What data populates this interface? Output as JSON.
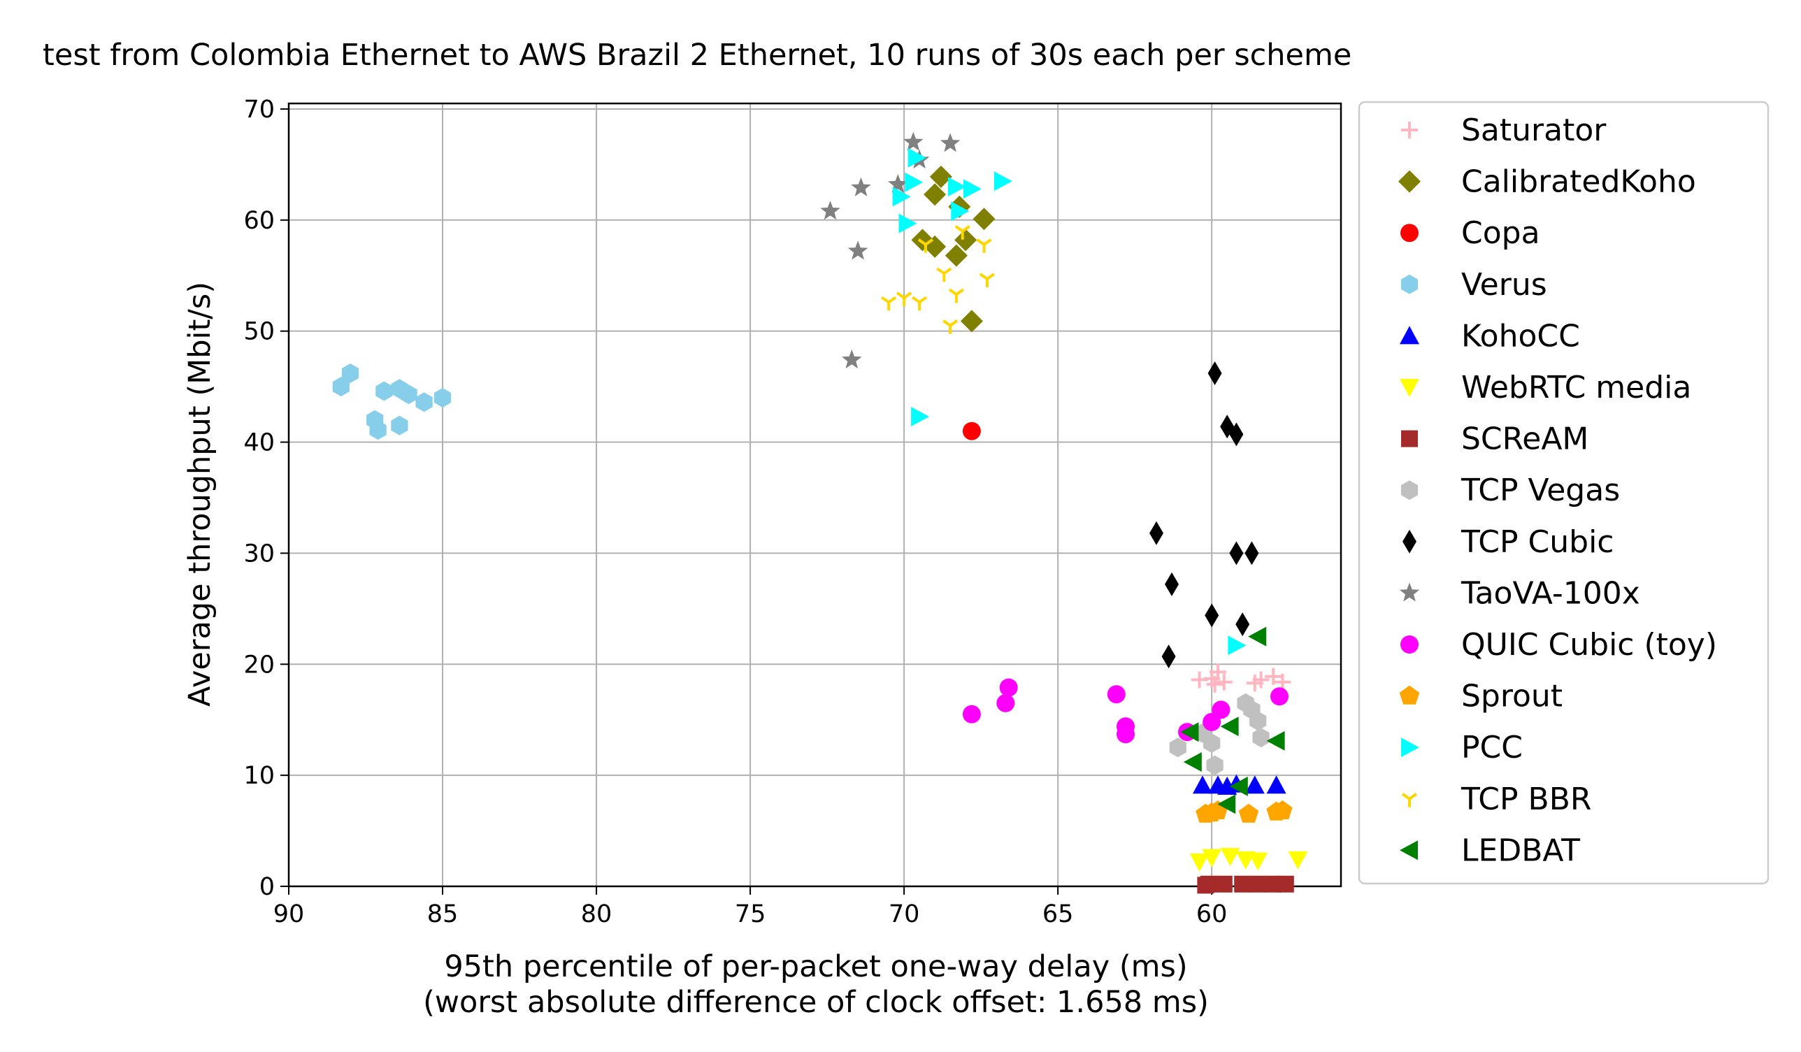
{
  "chart_data": {
    "type": "scatter",
    "title": "test from Colombia Ethernet to AWS Brazil 2 Ethernet, 10 runs of 30s each per scheme",
    "xlabel": "95th percentile of per-packet one-way delay (ms)",
    "xlabel2": "(worst absolute difference of clock offset: 1.658 ms)",
    "ylabel": "Average throughput (Mbit/s)",
    "xlim": [
      90,
      55.8
    ],
    "ylim": [
      0,
      70.5
    ],
    "x_inverted": true,
    "grid": true,
    "legend_position": "outside-right",
    "xticks": [
      90,
      85,
      80,
      75,
      70,
      65,
      60
    ],
    "xtick_labels": [
      "90",
      "85",
      "80",
      "75",
      "70",
      "65",
      "60"
    ],
    "yticks": [
      0,
      10,
      20,
      30,
      40,
      50,
      60,
      70
    ],
    "ytick_labels": [
      "0",
      "10",
      "20",
      "30",
      "40",
      "50",
      "60",
      "70"
    ],
    "series": [
      {
        "name": "Saturator",
        "marker": "plus",
        "color": "#ffb6c1",
        "points": [
          [
            60.4,
            18.6
          ],
          [
            60.0,
            18.7
          ],
          [
            59.8,
            19.3
          ],
          [
            59.6,
            18.4
          ],
          [
            59.9,
            18.2
          ],
          [
            58.4,
            18.6
          ],
          [
            58.0,
            18.9
          ],
          [
            57.7,
            18.4
          ],
          [
            58.6,
            18.3
          ]
        ]
      },
      {
        "name": "CalibratedKoho",
        "marker": "diamond",
        "color": "#808000",
        "points": [
          [
            68.8,
            63.9
          ],
          [
            69.0,
            62.3
          ],
          [
            68.2,
            61.2
          ],
          [
            67.4,
            60.1
          ],
          [
            69.4,
            58.2
          ],
          [
            68.0,
            58.2
          ],
          [
            69.0,
            57.6
          ],
          [
            68.3,
            56.8
          ],
          [
            67.8,
            50.9
          ]
        ]
      },
      {
        "name": "Copa",
        "marker": "circle",
        "color": "#ff0000",
        "points": [
          [
            67.8,
            41.0
          ]
        ]
      },
      {
        "name": "Verus",
        "marker": "hexagon",
        "color": "#87ceeb",
        "points": [
          [
            88.0,
            46.2
          ],
          [
            88.3,
            45.0
          ],
          [
            86.9,
            44.6
          ],
          [
            86.4,
            44.8
          ],
          [
            86.1,
            44.3
          ],
          [
            85.0,
            44.0
          ],
          [
            85.6,
            43.6
          ],
          [
            87.2,
            42.0
          ],
          [
            87.1,
            41.1
          ],
          [
            86.4,
            41.5
          ]
        ]
      },
      {
        "name": "KohoCC",
        "marker": "triangle-up",
        "color": "#0000ff",
        "points": [
          [
            60.3,
            9.1
          ],
          [
            59.8,
            9.1
          ],
          [
            59.2,
            9.2
          ],
          [
            58.6,
            9.1
          ],
          [
            57.9,
            9.1
          ],
          [
            59.5,
            9.0
          ]
        ]
      },
      {
        "name": "WebRTC media",
        "marker": "triangle-down",
        "color": "#ffff00",
        "points": [
          [
            60.0,
            2.6
          ],
          [
            59.4,
            2.7
          ],
          [
            58.9,
            2.4
          ],
          [
            58.5,
            2.3
          ],
          [
            57.2,
            2.4
          ],
          [
            60.4,
            2.2
          ]
        ]
      },
      {
        "name": "SCReAM",
        "marker": "square",
        "color": "#a52a2a",
        "points": [
          [
            60.1,
            0.2
          ],
          [
            59.6,
            0.2
          ],
          [
            59.0,
            0.2
          ],
          [
            58.5,
            0.2
          ],
          [
            58.0,
            0.2
          ],
          [
            57.6,
            0.2
          ],
          [
            60.2,
            0.1
          ]
        ]
      },
      {
        "name": "TCP Vegas",
        "marker": "hexagon",
        "color": "#c0c0c0",
        "points": [
          [
            58.9,
            16.5
          ],
          [
            58.7,
            15.9
          ],
          [
            58.5,
            14.9
          ],
          [
            58.4,
            13.4
          ],
          [
            60.0,
            12.9
          ],
          [
            61.1,
            12.5
          ],
          [
            59.9,
            10.9
          ],
          [
            60.3,
            13.8
          ]
        ]
      },
      {
        "name": "TCP Cubic",
        "marker": "thin-diamond",
        "color": "#000000",
        "points": [
          [
            59.9,
            46.2
          ],
          [
            59.5,
            41.4
          ],
          [
            59.2,
            40.7
          ],
          [
            61.8,
            31.8
          ],
          [
            59.2,
            30.0
          ],
          [
            58.7,
            30.0
          ],
          [
            61.3,
            27.2
          ],
          [
            60.0,
            24.4
          ],
          [
            59.0,
            23.6
          ],
          [
            61.4,
            20.7
          ]
        ]
      },
      {
        "name": "TaoVA-100x",
        "marker": "star",
        "color": "#808080",
        "points": [
          [
            69.7,
            67.0
          ],
          [
            68.5,
            66.9
          ],
          [
            69.5,
            65.4
          ],
          [
            70.2,
            63.2
          ],
          [
            71.4,
            62.9
          ],
          [
            72.4,
            60.8
          ],
          [
            71.5,
            57.2
          ],
          [
            71.7,
            47.4
          ]
        ]
      },
      {
        "name": "QUIC Cubic (toy)",
        "marker": "circle",
        "color": "#ff00ff",
        "points": [
          [
            66.6,
            17.9
          ],
          [
            66.7,
            16.5
          ],
          [
            67.8,
            15.5
          ],
          [
            63.1,
            17.3
          ],
          [
            62.8,
            14.4
          ],
          [
            62.8,
            13.7
          ],
          [
            59.7,
            15.9
          ],
          [
            60.0,
            14.8
          ],
          [
            57.8,
            17.1
          ],
          [
            60.8,
            13.9
          ]
        ]
      },
      {
        "name": "Sprout",
        "marker": "pentagon",
        "color": "#ffa500",
        "points": [
          [
            60.2,
            6.5
          ],
          [
            60.0,
            6.6
          ],
          [
            59.8,
            6.8
          ],
          [
            58.8,
            6.5
          ],
          [
            57.9,
            6.7
          ],
          [
            57.7,
            6.8
          ]
        ]
      },
      {
        "name": "PCC",
        "marker": "triangle-right",
        "color": "#00ffff",
        "points": [
          [
            69.6,
            65.6
          ],
          [
            69.7,
            63.4
          ],
          [
            68.3,
            63.0
          ],
          [
            67.8,
            62.8
          ],
          [
            66.8,
            63.5
          ],
          [
            70.1,
            62.1
          ],
          [
            69.9,
            59.7
          ],
          [
            68.2,
            60.8
          ],
          [
            69.5,
            42.3
          ],
          [
            59.2,
            21.7
          ]
        ]
      },
      {
        "name": "TCP BBR",
        "marker": "tri-down",
        "color": "#ffd700",
        "points": [
          [
            70.5,
            52.6
          ],
          [
            70.0,
            53.0
          ],
          [
            69.5,
            52.6
          ],
          [
            69.3,
            57.8
          ],
          [
            68.7,
            55.2
          ],
          [
            68.3,
            53.3
          ],
          [
            67.4,
            57.8
          ],
          [
            67.3,
            54.7
          ],
          [
            68.5,
            50.5
          ],
          [
            68.1,
            59.0
          ]
        ]
      },
      {
        "name": "LEDBAT",
        "marker": "triangle-left",
        "color": "#008000",
        "points": [
          [
            58.5,
            22.5
          ],
          [
            57.9,
            13.1
          ],
          [
            59.4,
            14.4
          ],
          [
            60.7,
            13.9
          ],
          [
            60.6,
            11.2
          ],
          [
            59.1,
            9.0
          ],
          [
            59.5,
            7.4
          ]
        ]
      }
    ]
  }
}
